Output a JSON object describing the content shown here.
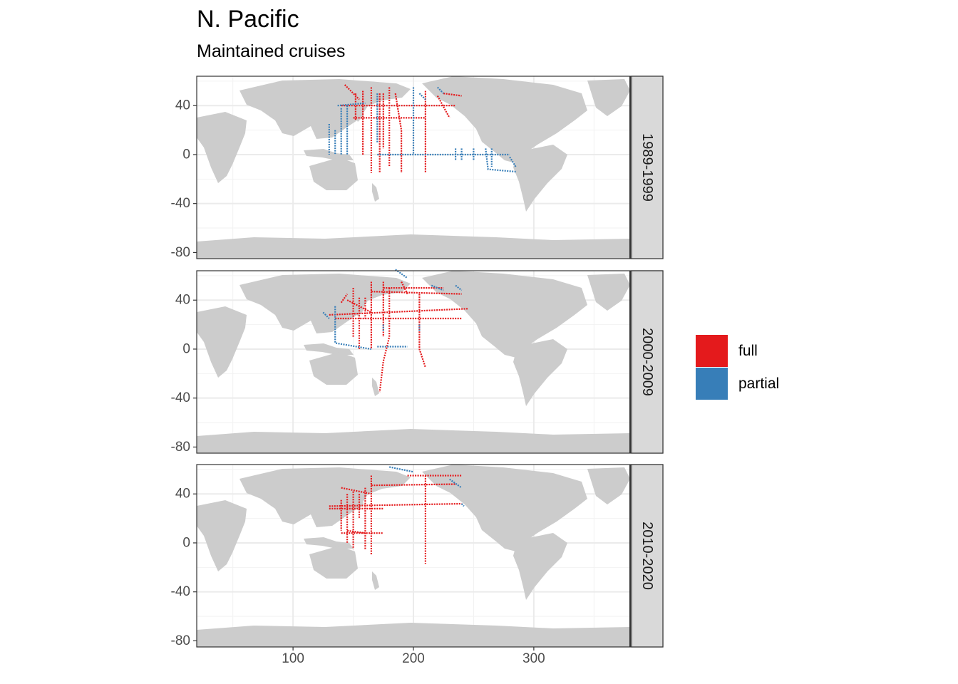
{
  "chart_data": {
    "type": "heatmap",
    "title": "N. Pacific",
    "subtitle": "Maintained cruises",
    "xlabel": "",
    "ylabel": "",
    "x_ticks": [
      100,
      200,
      300
    ],
    "y_ticks": [
      40,
      0,
      -40,
      -80
    ],
    "xlim": [
      20,
      380
    ],
    "ylim": [
      -85,
      64
    ],
    "grid": true,
    "legend": {
      "placement": "right",
      "entries": [
        {
          "label": "full",
          "color": "#e41a1c"
        },
        {
          "label": "partial",
          "color": "#377eb8"
        }
      ]
    },
    "panels": [
      {
        "label": "1989-1999",
        "tracks": [
          {
            "status": "full",
            "points": [
              [
                143,
                57
              ],
              [
                150,
                50
              ],
              [
                155,
                45
              ]
            ]
          },
          {
            "status": "full",
            "points": [
              [
                152,
                50
              ],
              [
                152,
                28
              ]
            ]
          },
          {
            "status": "full",
            "points": [
              [
                158,
                52
              ],
              [
                158,
                0
              ]
            ]
          },
          {
            "status": "full",
            "points": [
              [
                165,
                55
              ],
              [
                165,
                -15
              ]
            ]
          },
          {
            "status": "full",
            "points": [
              [
                172,
                50
              ],
              [
                172,
                -15
              ]
            ]
          },
          {
            "status": "full",
            "points": [
              [
                175,
                50
              ],
              [
                175,
                5
              ]
            ]
          },
          {
            "status": "full",
            "points": [
              [
                180,
                55
              ],
              [
                180,
                -10
              ]
            ]
          },
          {
            "status": "full",
            "points": [
              [
                185,
                50
              ],
              [
                190,
                20
              ],
              [
                190,
                -15
              ]
            ]
          },
          {
            "status": "full",
            "points": [
              [
                210,
                52
              ],
              [
                210,
                -15
              ]
            ]
          },
          {
            "status": "full",
            "points": [
              [
                220,
                48
              ],
              [
                230,
                30
              ]
            ]
          },
          {
            "status": "full",
            "points": [
              [
                140,
                40
              ],
              [
                235,
                40
              ]
            ]
          },
          {
            "status": "full",
            "points": [
              [
                150,
                30
              ],
              [
                210,
                30
              ]
            ]
          },
          {
            "status": "full",
            "points": [
              [
                225,
                50
              ],
              [
                240,
                48
              ]
            ]
          },
          {
            "status": "partial",
            "points": [
              [
                137,
                40
              ],
              [
                160,
                42
              ]
            ]
          },
          {
            "status": "partial",
            "points": [
              [
                170,
                0
              ],
              [
                280,
                0
              ]
            ]
          },
          {
            "status": "partial",
            "points": [
              [
                130,
                25
              ],
              [
                130,
                0
              ]
            ]
          },
          {
            "status": "partial",
            "points": [
              [
                135,
                20
              ],
              [
                135,
                0
              ]
            ]
          },
          {
            "status": "partial",
            "points": [
              [
                140,
                38
              ],
              [
                140,
                0
              ]
            ]
          },
          {
            "status": "partial",
            "points": [
              [
                145,
                40
              ],
              [
                145,
                0
              ]
            ]
          },
          {
            "status": "partial",
            "points": [
              [
                170,
                50
              ],
              [
                170,
                10
              ]
            ]
          },
          {
            "status": "partial",
            "points": [
              [
                200,
                55
              ],
              [
                200,
                0
              ]
            ]
          },
          {
            "status": "partial",
            "points": [
              [
                205,
                50
              ],
              [
                210,
                45
              ]
            ]
          },
          {
            "status": "partial",
            "points": [
              [
                220,
                55
              ],
              [
                225,
                50
              ]
            ]
          },
          {
            "status": "partial",
            "points": [
              [
                235,
                5
              ],
              [
                235,
                -5
              ]
            ]
          },
          {
            "status": "partial",
            "points": [
              [
                240,
                5
              ],
              [
                240,
                -5
              ]
            ]
          },
          {
            "status": "partial",
            "points": [
              [
                250,
                5
              ],
              [
                250,
                -5
              ]
            ]
          },
          {
            "status": "partial",
            "points": [
              [
                265,
                5
              ],
              [
                265,
                -10
              ]
            ]
          },
          {
            "status": "partial",
            "points": [
              [
                260,
                5
              ],
              [
                262,
                -12
              ],
              [
                285,
                -14
              ]
            ]
          },
          {
            "status": "partial",
            "points": [
              [
                280,
                -2
              ],
              [
                285,
                -10
              ]
            ]
          }
        ]
      },
      {
        "label": "2000-2009",
        "tracks": [
          {
            "status": "full",
            "points": [
              [
                130,
                28
              ],
              [
                245,
                33
              ]
            ]
          },
          {
            "status": "full",
            "points": [
              [
                135,
                25
              ],
              [
                240,
                25
              ]
            ]
          },
          {
            "status": "full",
            "points": [
              [
                145,
                40
              ],
              [
                165,
                30
              ]
            ]
          },
          {
            "status": "full",
            "points": [
              [
                150,
                50
              ],
              [
                150,
                10
              ]
            ]
          },
          {
            "status": "full",
            "points": [
              [
                155,
                42
              ],
              [
                155,
                0
              ]
            ]
          },
          {
            "status": "full",
            "points": [
              [
                160,
                42
              ],
              [
                160,
                25
              ]
            ]
          },
          {
            "status": "full",
            "points": [
              [
                165,
                55
              ],
              [
                165,
                0
              ]
            ]
          },
          {
            "status": "full",
            "points": [
              [
                175,
                55
              ],
              [
                175,
                10
              ]
            ]
          },
          {
            "status": "full",
            "points": [
              [
                180,
                50
              ],
              [
                180,
                10
              ],
              [
                175,
                -10
              ],
              [
                172,
                -35
              ]
            ]
          },
          {
            "status": "full",
            "points": [
              [
                205,
                45
              ],
              [
                205,
                0
              ],
              [
                210,
                -15
              ]
            ]
          },
          {
            "status": "full",
            "points": [
              [
                175,
                50
              ],
              [
                225,
                50
              ]
            ]
          },
          {
            "status": "full",
            "points": [
              [
                165,
                47
              ],
              [
                240,
                45
              ]
            ]
          },
          {
            "status": "full",
            "points": [
              [
                190,
                55
              ],
              [
                195,
                45
              ]
            ]
          },
          {
            "status": "full",
            "points": [
              [
                140,
                38
              ],
              [
                145,
                45
              ]
            ]
          },
          {
            "status": "partial",
            "points": [
              [
                135,
                35
              ],
              [
                135,
                5
              ],
              [
                165,
                0
              ]
            ]
          },
          {
            "status": "partial",
            "points": [
              [
                125,
                30
              ],
              [
                130,
                25
              ]
            ]
          },
          {
            "status": "partial",
            "points": [
              [
                185,
                65
              ],
              [
                195,
                58
              ]
            ]
          },
          {
            "status": "partial",
            "points": [
              [
                215,
                52
              ],
              [
                225,
                48
              ]
            ]
          },
          {
            "status": "partial",
            "points": [
              [
                235,
                52
              ],
              [
                240,
                48
              ]
            ]
          },
          {
            "status": "partial",
            "points": [
              [
                170,
                2
              ],
              [
                195,
                2
              ]
            ]
          },
          {
            "status": "partial",
            "points": [
              [
                175,
                20
              ],
              [
                175,
                15
              ]
            ]
          },
          {
            "status": "partial",
            "points": [
              [
                205,
                20
              ],
              [
                205,
                15
              ]
            ]
          }
        ]
      },
      {
        "label": "2010-2020",
        "tracks": [
          {
            "status": "full",
            "points": [
              [
                130,
                30
              ],
              [
                240,
                32
              ]
            ]
          },
          {
            "status": "full",
            "points": [
              [
                130,
                28
              ],
              [
                175,
                28
              ]
            ]
          },
          {
            "status": "full",
            "points": [
              [
                140,
                45
              ],
              [
                165,
                40
              ]
            ]
          },
          {
            "status": "full",
            "points": [
              [
                140,
                35
              ],
              [
                140,
                10
              ]
            ]
          },
          {
            "status": "full",
            "points": [
              [
                145,
                40
              ],
              [
                145,
                0
              ]
            ]
          },
          {
            "status": "full",
            "points": [
              [
                150,
                42
              ],
              [
                150,
                -5
              ]
            ]
          },
          {
            "status": "full",
            "points": [
              [
                155,
                40
              ],
              [
                155,
                20
              ]
            ]
          },
          {
            "status": "full",
            "points": [
              [
                160,
                45
              ],
              [
                160,
                -5
              ]
            ]
          },
          {
            "status": "full",
            "points": [
              [
                165,
                55
              ],
              [
                165,
                -10
              ]
            ]
          },
          {
            "status": "full",
            "points": [
              [
                210,
                55
              ],
              [
                210,
                -17
              ]
            ]
          },
          {
            "status": "full",
            "points": [
              [
                165,
                47
              ],
              [
                235,
                48
              ]
            ]
          },
          {
            "status": "full",
            "points": [
              [
                195,
                55
              ],
              [
                240,
                55
              ]
            ]
          },
          {
            "status": "full",
            "points": [
              [
                140,
                8
              ],
              [
                175,
                8
              ]
            ]
          },
          {
            "status": "full",
            "points": [
              [
                145,
                10
              ],
              [
                160,
                8
              ]
            ]
          },
          {
            "status": "partial",
            "points": [
              [
                180,
                62
              ],
              [
                200,
                58
              ]
            ]
          },
          {
            "status": "partial",
            "points": [
              [
                230,
                52
              ],
              [
                240,
                45
              ]
            ]
          },
          {
            "status": "partial",
            "points": [
              [
                240,
                32
              ],
              [
                242,
                30
              ]
            ]
          }
        ]
      }
    ]
  }
}
